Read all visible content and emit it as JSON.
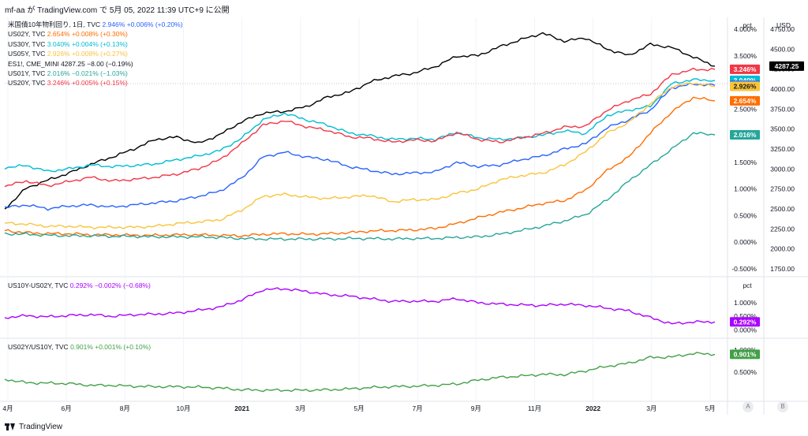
{
  "header": {
    "caption": "mf-aa が TradingView.com で 5月 05, 2022 11:39 UTC+9 に公開"
  },
  "footer": {
    "brand": "TradingView"
  },
  "buttons": {
    "a": "A",
    "b": "B"
  },
  "colors": {
    "black": "#000000",
    "us02": "#ff6d00",
    "us30": "#00bcd4",
    "us05": "#f9c43a",
    "us10": "#2962ff",
    "us01": "#26a69a",
    "us20": "#f23645",
    "spread": "#aa00ff",
    "ratio": "#43a047"
  },
  "legend_main": [
    {
      "name": "米国債10年物利回り, 1日, TVC",
      "value": "2.946%",
      "change": "+0.006% (+0.20%)",
      "color": "#2962ff"
    },
    {
      "name": "US02Y, TVC",
      "value": "2.654%",
      "change": "+0.008% (+0.30%)",
      "color": "#ff6d00"
    },
    {
      "name": "US30Y, TVC",
      "value": "3.040%",
      "change": "+0.004% (+0.13%)",
      "color": "#00bcd4"
    },
    {
      "name": "US05Y, TVC",
      "value": "2.926%",
      "change": "+0.008% (+0.27%)",
      "color": "#f9c43a"
    },
    {
      "name": "ES1!, CME_MINI",
      "value": "4287.25",
      "change": "−8.00 (−0.19%)",
      "color": "#131722"
    },
    {
      "name": "US01Y, TVC",
      "value": "2.016%",
      "change": "−0.021% (−1.03%)",
      "color": "#26a69a"
    },
    {
      "name": "US20Y, TVC",
      "value": "3.246%",
      "change": "+0.005% (+0.15%)",
      "color": "#f23645"
    }
  ],
  "legend_spread": {
    "name": "US10Y-US02Y, TVC",
    "value": "0.292%",
    "change": "−0.002% (−0.68%)",
    "color": "#aa00ff"
  },
  "legend_ratio": {
    "name": "US02Y/US10Y, TVC",
    "value": "0.901%",
    "change": "+0.001% (+0.10%)",
    "color": "#43a047"
  },
  "chart_data": [
    {
      "type": "line",
      "pane": "main",
      "x_ticks": [
        "4月",
        "6月",
        "8月",
        "10月",
        "2021",
        "3月",
        "5月",
        "7月",
        "9月",
        "11月",
        "2022",
        "3月",
        "5月"
      ],
      "pct_axis": {
        "unit_label": "pct",
        "ticks": [
          "-0.500%",
          "0.000%",
          "0.500%",
          "1.000%",
          "1.500%",
          "2.000%",
          "2.500%",
          "3.000%",
          "3.500%",
          "4.000%"
        ],
        "ylim": [
          -0.5,
          4.0
        ]
      },
      "usd_axis": {
        "unit_label": "USD",
        "ticks": [
          "1750.00",
          "2000.00",
          "2250.00",
          "2500.00",
          "2750.00",
          "3000.00",
          "3250.00",
          "3500.00",
          "3750.00",
          "4000.00",
          "4250.00",
          "4500.00",
          "4750.00"
        ],
        "ylim": [
          1750,
          4750
        ]
      },
      "series": [
        {
          "name": "ES1!",
          "axis": "usd",
          "color": "#000000",
          "last_label": "4287.25",
          "values": [
            2500,
            2760,
            2860,
            2950,
            3060,
            3150,
            3250,
            3370,
            3400,
            3320,
            3430,
            3590,
            3700,
            3720,
            3780,
            3900,
            3960,
            4090,
            4160,
            4200,
            4280,
            4410,
            4420,
            4530,
            4620,
            4700,
            4600,
            4640,
            4500,
            4420,
            4560,
            4520,
            4400,
            4287.25
          ]
        },
        {
          "name": "US30Y",
          "axis": "pct",
          "color": "#00bcd4",
          "last_label": "3.040%",
          "values": [
            1.4,
            1.44,
            1.33,
            1.38,
            1.45,
            1.42,
            1.44,
            1.47,
            1.55,
            1.62,
            1.72,
            1.95,
            2.3,
            2.42,
            2.3,
            2.2,
            2.05,
            2.0,
            1.93,
            1.95,
            1.93,
            2.06,
            1.96,
            1.93,
            1.96,
            2.01,
            2.09,
            2.04,
            2.38,
            2.48,
            2.55,
            2.98,
            3.05,
            3.04
          ]
        },
        {
          "name": "US20Y",
          "axis": "pct",
          "color": "#f23645",
          "last_label": "3.246%",
          "values": [
            1.05,
            1.15,
            1.06,
            1.14,
            1.22,
            1.15,
            1.18,
            1.22,
            1.28,
            1.38,
            1.55,
            1.85,
            2.2,
            2.28,
            2.17,
            2.1,
            1.98,
            1.95,
            1.88,
            1.92,
            1.9,
            2.06,
            1.93,
            1.88,
            1.96,
            2.04,
            2.16,
            2.18,
            2.48,
            2.66,
            2.78,
            3.15,
            3.24,
            3.246
          ]
        },
        {
          "name": "US10Y",
          "axis": "pct",
          "color": "#2962ff",
          "last_label": "2.946%",
          "values": [
            0.65,
            0.7,
            0.63,
            0.68,
            0.7,
            0.66,
            0.7,
            0.74,
            0.78,
            0.86,
            0.96,
            1.2,
            1.6,
            1.69,
            1.6,
            1.55,
            1.42,
            1.35,
            1.28,
            1.3,
            1.32,
            1.5,
            1.42,
            1.45,
            1.55,
            1.62,
            1.75,
            1.85,
            2.15,
            2.3,
            2.48,
            2.9,
            2.97,
            2.946
          ]
        },
        {
          "name": "US05Y",
          "axis": "pct",
          "color": "#f9c43a",
          "last_label": "2.926%",
          "values": [
            0.36,
            0.34,
            0.3,
            0.3,
            0.28,
            0.28,
            0.28,
            0.3,
            0.35,
            0.38,
            0.42,
            0.6,
            0.86,
            0.9,
            0.85,
            0.82,
            0.85,
            0.88,
            0.76,
            0.8,
            0.8,
            0.92,
            1.0,
            1.17,
            1.25,
            1.3,
            1.45,
            1.7,
            2.05,
            2.25,
            2.6,
            2.92,
            2.99,
            2.926
          ]
        },
        {
          "name": "US02Y",
          "axis": "pct",
          "color": "#ff6d00",
          "last_label": "2.654%",
          "values": [
            0.22,
            0.18,
            0.16,
            0.16,
            0.14,
            0.14,
            0.13,
            0.13,
            0.14,
            0.14,
            0.13,
            0.12,
            0.15,
            0.16,
            0.15,
            0.16,
            0.18,
            0.21,
            0.22,
            0.23,
            0.26,
            0.35,
            0.46,
            0.56,
            0.64,
            0.73,
            0.78,
            0.98,
            1.35,
            1.6,
            2.05,
            2.45,
            2.72,
            2.654
          ]
        },
        {
          "name": "US01Y",
          "axis": "pct",
          "color": "#26a69a",
          "last_label": "2.016%",
          "values": [
            0.16,
            0.15,
            0.13,
            0.12,
            0.12,
            0.11,
            0.11,
            0.1,
            0.1,
            0.1,
            0.09,
            0.07,
            0.06,
            0.06,
            0.06,
            0.06,
            0.07,
            0.07,
            0.06,
            0.07,
            0.07,
            0.09,
            0.1,
            0.15,
            0.22,
            0.3,
            0.4,
            0.52,
            0.8,
            1.15,
            1.45,
            1.75,
            2.05,
            2.016
          ]
        }
      ]
    },
    {
      "type": "line",
      "pane": "spread",
      "pct_axis": {
        "unit_label": "pct",
        "ticks": [
          "0.000%",
          "0.500%",
          "1.000%"
        ],
        "ylim": [
          -0.05,
          1.35
        ]
      },
      "series": [
        {
          "name": "US10Y-US02Y",
          "color": "#aa00ff",
          "last_label": "0.292%",
          "values": [
            0.45,
            0.52,
            0.48,
            0.53,
            0.56,
            0.5,
            0.56,
            0.58,
            0.62,
            0.72,
            0.84,
            1.1,
            1.48,
            1.52,
            1.42,
            1.3,
            1.25,
            1.15,
            1.05,
            1.06,
            1.05,
            1.15,
            1.0,
            0.95,
            0.92,
            0.9,
            0.95,
            0.9,
            0.8,
            0.7,
            0.45,
            0.22,
            0.29,
            0.292
          ]
        }
      ]
    },
    {
      "type": "line",
      "pane": "ratio",
      "pct_axis": {
        "unit_label": "",
        "ticks": [
          "0.500%",
          "1.000%"
        ],
        "ylim": [
          0.0,
          1.05
        ]
      },
      "series": [
        {
          "name": "US02Y/US10Y",
          "color": "#43a047",
          "last_label": "0.901%",
          "values": [
            0.34,
            0.26,
            0.25,
            0.24,
            0.2,
            0.2,
            0.18,
            0.17,
            0.17,
            0.16,
            0.14,
            0.1,
            0.09,
            0.09,
            0.09,
            0.1,
            0.12,
            0.15,
            0.17,
            0.18,
            0.2,
            0.23,
            0.32,
            0.38,
            0.41,
            0.45,
            0.44,
            0.53,
            0.63,
            0.7,
            0.83,
            0.84,
            0.92,
            0.901
          ]
        }
      ]
    }
  ]
}
